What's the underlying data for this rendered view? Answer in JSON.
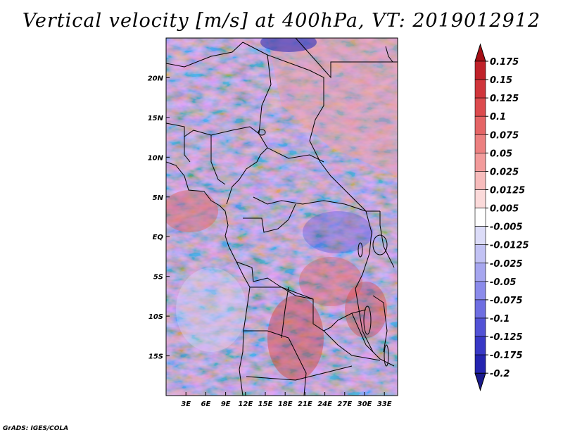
{
  "title": "Vertical velocity [m/s] at 400hPa, VT: 2019012912",
  "credit": "GrADS: IGES/COLA",
  "map": {
    "lon_labels": [
      "3E",
      "6E",
      "9E",
      "12E",
      "15E",
      "18E",
      "21E",
      "24E",
      "27E",
      "30E",
      "33E"
    ],
    "lon_values": [
      3,
      6,
      9,
      12,
      15,
      18,
      21,
      24,
      27,
      30,
      33
    ],
    "lat_labels": [
      "20N",
      "15N",
      "10N",
      "5N",
      "EQ",
      "5S",
      "10S",
      "15S"
    ],
    "lat_values": [
      20,
      15,
      10,
      5,
      0,
      -5,
      -10,
      -15
    ],
    "lon_range": [
      0,
      35
    ],
    "lat_range": [
      -20,
      25
    ]
  },
  "colorbar": {
    "levels": [
      "0.175",
      "0.15",
      "0.125",
      "0.1",
      "0.075",
      "0.05",
      "0.025",
      "0.0125",
      "0.005",
      "-0.005",
      "-0.0125",
      "-0.025",
      "-0.05",
      "-0.075",
      "-0.1",
      "-0.125",
      "-0.175",
      "-0.2"
    ],
    "colors": [
      "#a50f15",
      "#c0222a",
      "#d0353b",
      "#dc4b4e",
      "#e56566",
      "#ec8080",
      "#f29b9b",
      "#f7bcbc",
      "#fbdada",
      "#ffffff",
      "#dcdcf8",
      "#c2c2f4",
      "#a6a6ef",
      "#8b8beb",
      "#6e6ee2",
      "#5252d6",
      "#3838c6",
      "#2424b0",
      "#1a1a8c"
    ]
  }
}
